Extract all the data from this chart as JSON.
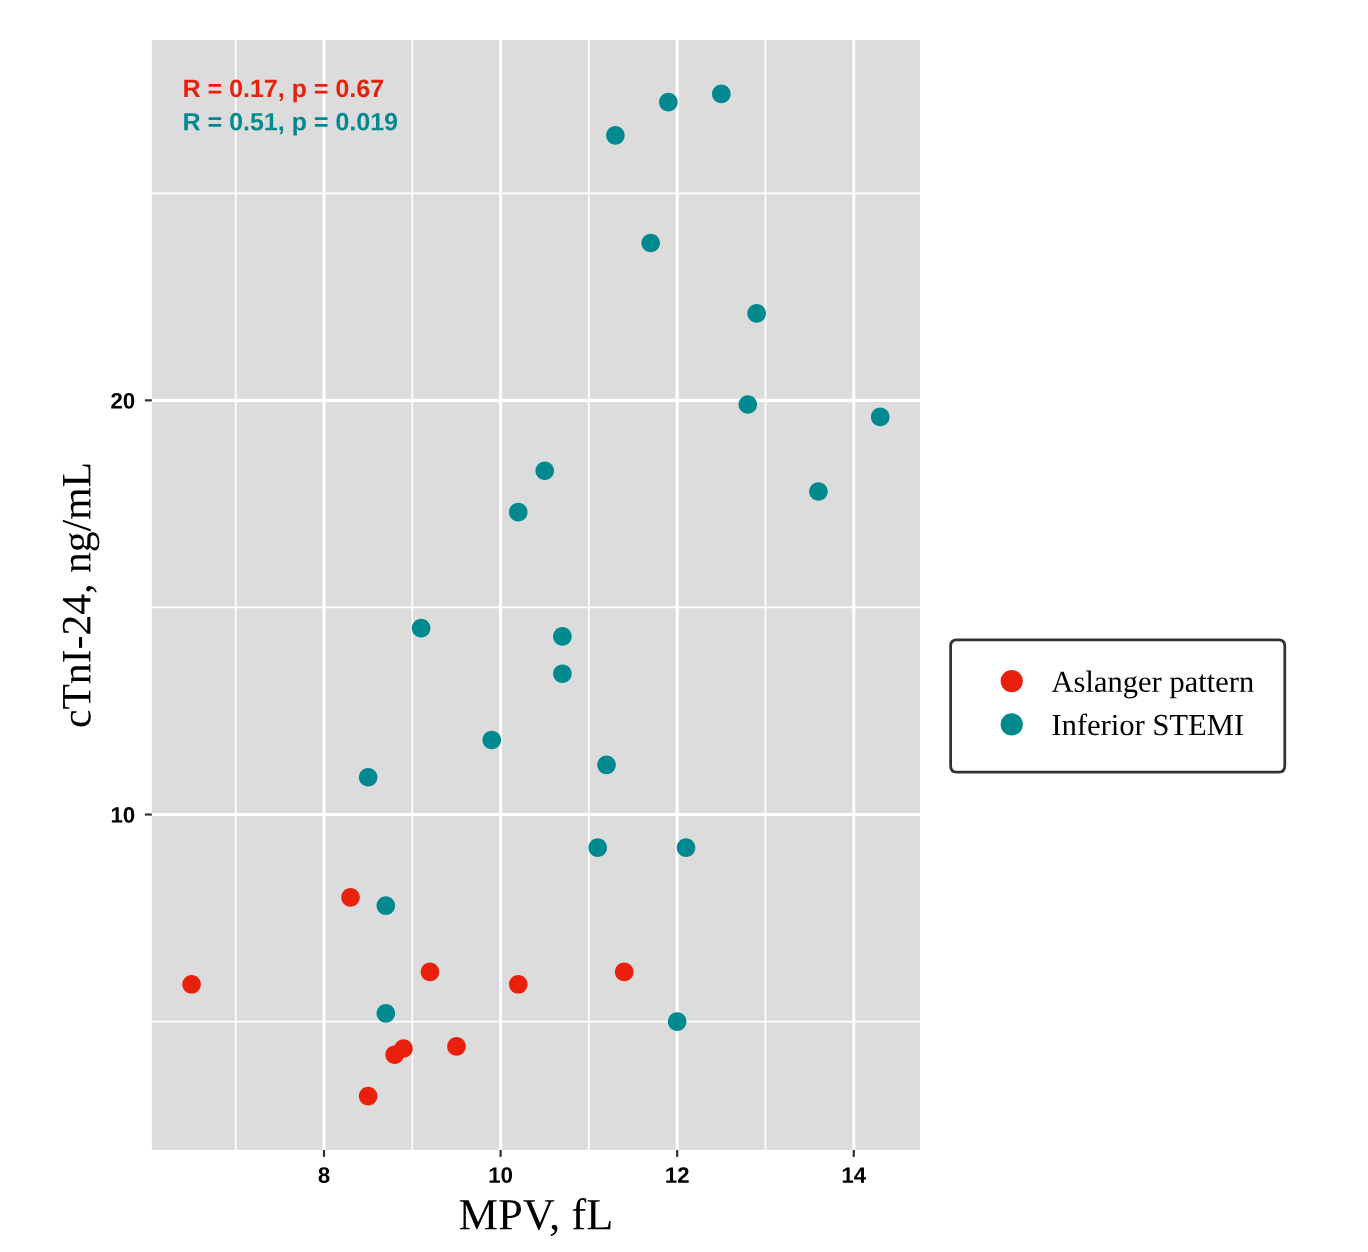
{
  "chart_data": {
    "type": "scatter",
    "xlabel": "MPV, fL",
    "ylabel": "cTnI-24, ng/mL",
    "series": [
      {
        "name": "Aslanger pattern",
        "color": "#e8200c",
        "x": [
          6.5,
          8.3,
          9.2,
          10.2,
          11.4,
          8.8,
          8.9,
          9.5,
          8.5
        ],
        "values": [
          5.9,
          8.0,
          6.2,
          5.9,
          6.2,
          4.2,
          4.35,
          4.4,
          3.2
        ]
      },
      {
        "name": "Inferior STEMI",
        "color": "#00898f",
        "x": [
          12.5,
          11.9,
          11.3,
          11.7,
          12.9,
          12.8,
          14.3,
          13.6,
          10.5,
          10.2,
          9.1,
          10.7,
          10.7,
          9.9,
          11.2,
          8.5,
          11.1,
          12.1,
          8.7,
          8.7,
          12.0
        ],
        "values": [
          27.4,
          27.2,
          26.4,
          23.8,
          22.1,
          19.9,
          19.6,
          17.8,
          18.3,
          17.3,
          14.5,
          14.3,
          13.4,
          11.8,
          11.2,
          10.9,
          9.2,
          9.2,
          7.8,
          5.2,
          5.0
        ]
      }
    ],
    "xlim": [
      6.05,
      14.75
    ],
    "ylim": [
      1.9,
      28.7
    ],
    "xticks": [
      8,
      10,
      12,
      14
    ],
    "yticks": [
      10,
      20
    ],
    "grid": true,
    "legend": "right",
    "marker": "circle",
    "annotations": [
      "R = 0.17, p = 0.67",
      "R = 0.51, p = 0.019"
    ]
  }
}
